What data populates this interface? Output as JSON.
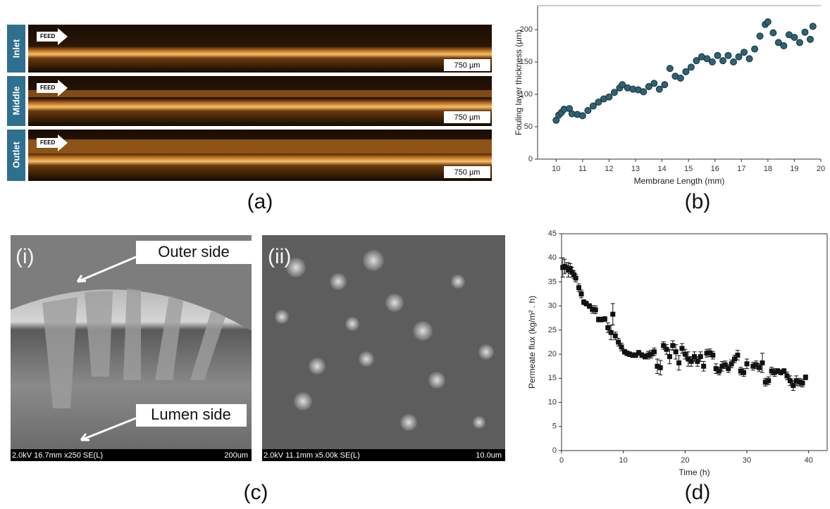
{
  "panel_a": {
    "label": "(a)",
    "rows": [
      {
        "name": "Inlet",
        "arrow": "FEED",
        "scale": "750 µm"
      },
      {
        "name": "Middle",
        "arrow": "FEED",
        "scale": "750 µm"
      },
      {
        "name": "Outlet",
        "arrow": "FEED",
        "scale": "750 µm"
      }
    ]
  },
  "panel_c": {
    "label": "(c)",
    "images": [
      {
        "tag": "(i)",
        "callouts": [
          "Outer side",
          "Lumen side"
        ],
        "footer": "2.0kV 16.7mm x250 SE(L)",
        "scale": "200um"
      },
      {
        "tag": "(ii)",
        "footer": "2.0kV 11.1mm x5.00k SE(L)",
        "scale": "10.0um"
      }
    ]
  },
  "chart_data": [
    {
      "type": "scatter",
      "panel_label": "(b)",
      "x_label": "Membrane Length (mm)",
      "y_label": "Fouling layer thickness (µm)",
      "marker": "circle",
      "color": "#2f6272",
      "x": [
        10.0,
        10.1,
        10.2,
        10.3,
        10.5,
        10.6,
        10.8,
        11.0,
        11.2,
        11.4,
        11.6,
        11.8,
        12.0,
        12.2,
        12.4,
        12.5,
        12.7,
        12.9,
        13.1,
        13.3,
        13.5,
        13.7,
        13.9,
        14.1,
        14.3,
        14.5,
        14.7,
        14.9,
        15.1,
        15.3,
        15.5,
        15.7,
        15.9,
        16.1,
        16.3,
        16.5,
        16.7,
        16.9,
        17.1,
        17.3,
        17.5,
        17.7,
        17.9,
        18.0,
        18.2,
        18.4,
        18.6,
        18.8,
        19.0,
        19.2,
        19.4,
        19.6,
        19.7
      ],
      "values": [
        60,
        68,
        72,
        77,
        78,
        70,
        69,
        67,
        75,
        82,
        88,
        93,
        96,
        103,
        110,
        115,
        110,
        108,
        107,
        104,
        112,
        117,
        108,
        115,
        140,
        128,
        125,
        135,
        142,
        152,
        158,
        155,
        150,
        160,
        152,
        160,
        150,
        158,
        165,
        155,
        170,
        190,
        208,
        212,
        195,
        180,
        175,
        192,
        188,
        180,
        196,
        185,
        205
      ],
      "xlim": [
        9.3,
        20
      ],
      "ylim": [
        0,
        237
      ],
      "xticks": [
        10,
        11,
        12,
        13,
        14,
        15,
        16,
        17,
        18,
        19,
        20
      ],
      "yticks": [
        0,
        50,
        100,
        150,
        200
      ]
    },
    {
      "type": "scatter",
      "panel_label": "(d)",
      "x_label": "Time (h)",
      "y_label": "Permeate flux (kg/m² . h)",
      "marker": "square",
      "color": "#111111",
      "x": [
        0.2,
        0.5,
        0.8,
        1.1,
        1.4,
        1.7,
        2.0,
        2.3,
        2.8,
        3.2,
        3.6,
        4.0,
        4.5,
        5.0,
        5.5,
        6.0,
        6.5,
        7.0,
        7.5,
        8.0,
        8.3,
        8.7,
        9.2,
        9.7,
        10.2,
        10.6,
        11.0,
        11.5,
        12.0,
        12.5,
        13.0,
        13.5,
        14.0,
        14.5,
        15.0,
        15.5,
        16.0,
        16.5,
        17.0,
        17.5,
        18.0,
        18.5,
        19.0,
        19.5,
        20.0,
        20.5,
        21.0,
        21.5,
        22.0,
        22.5,
        23.0,
        23.5,
        24.0,
        24.5,
        25.0,
        25.5,
        26.0,
        26.5,
        27.0,
        27.5,
        28.0,
        28.5,
        29.0,
        29.5,
        30.0,
        31.0,
        31.5,
        32.0,
        32.5,
        33.0,
        33.5,
        34.0,
        34.5,
        35.0,
        35.5,
        36.0,
        36.5,
        37.0,
        37.5,
        38.0,
        38.5,
        39.0,
        39.5
      ],
      "values": [
        38,
        38.2,
        38,
        37.5,
        37.8,
        37,
        36.5,
        35.8,
        33.8,
        32.5,
        30.8,
        30.5,
        30,
        29.3,
        29.2,
        27.2,
        27.2,
        27.3,
        25.5,
        24.5,
        28.3,
        23.8,
        22.5,
        21.5,
        20.5,
        20.2,
        20,
        19.8,
        19.8,
        20.3,
        19.8,
        19.5,
        19.8,
        20,
        20.5,
        17.5,
        17.2,
        21.8,
        21,
        19.5,
        21.8,
        20.5,
        18.2,
        21.2,
        20,
        19,
        18.5,
        19.5,
        18.5,
        19.5,
        17.5,
        20.2,
        20.3,
        19.8,
        17,
        16.5,
        17.5,
        17.8,
        17,
        18,
        19,
        19.8,
        16.5,
        16.2,
        18,
        17.5,
        17.8,
        17.2,
        18.2,
        14.2,
        14.5,
        16.5,
        16.2,
        16.5,
        16.2,
        16.5,
        15.5,
        14.5,
        13.5,
        14.5,
        14.2,
        14,
        15.2
      ],
      "errors": [
        2,
        1.5,
        1,
        1.5,
        1,
        1,
        0.8,
        0.8,
        0.8,
        0.8,
        0.5,
        0.5,
        0.5,
        0.8,
        0.8,
        0.5,
        0.5,
        0.5,
        1,
        1.5,
        2.2,
        0.8,
        0.8,
        0.8,
        0.5,
        0.5,
        0.5,
        0.5,
        0.5,
        0.5,
        0.5,
        0.5,
        0.8,
        0.8,
        0.8,
        1.5,
        1.5,
        0.8,
        1,
        1.5,
        1,
        1.5,
        1.5,
        1,
        1,
        1.5,
        1,
        1,
        1,
        1,
        1,
        0.8,
        0.8,
        0.8,
        1,
        0.8,
        1,
        0.8,
        0.8,
        0.8,
        0.8,
        1,
        0.8,
        0.8,
        1,
        0.8,
        0.8,
        0.8,
        2,
        0.8,
        0.8,
        0.8,
        0.8,
        0.5,
        0.5,
        0.5,
        0.8,
        1,
        1,
        1,
        0.8,
        0.8,
        0.5
      ],
      "xlim": [
        0,
        43
      ],
      "ylim": [
        0,
        45
      ],
      "xticks": [
        0,
        10,
        20,
        30,
        40
      ],
      "yticks": [
        0,
        5,
        10,
        15,
        20,
        25,
        30,
        35,
        40,
        45
      ]
    }
  ]
}
